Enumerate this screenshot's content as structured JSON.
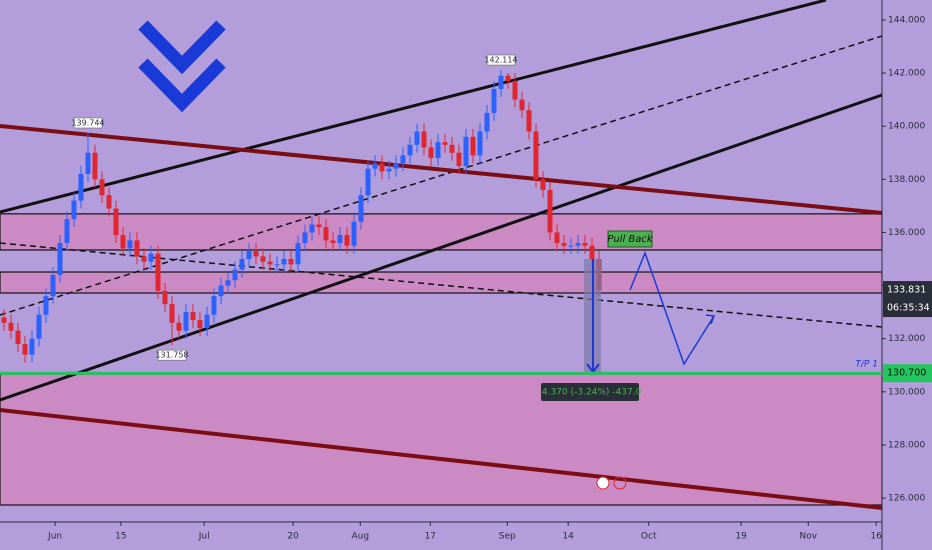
{
  "chart_data": {
    "type": "candlestick",
    "ylim": [
      125.1,
      144.75
    ],
    "yticks": [
      {
        "value": 126,
        "label": "126.000"
      },
      {
        "value": 128,
        "label": "128.000"
      },
      {
        "value": 130,
        "label": "130.000"
      },
      {
        "value": 132,
        "label": "132.000"
      },
      {
        "value": 134,
        "label": "134.000"
      },
      {
        "value": 136,
        "label": "136.000"
      },
      {
        "value": 138,
        "label": "138.000"
      },
      {
        "value": 140,
        "label": "140.000"
      },
      {
        "value": 142,
        "label": "142.000"
      },
      {
        "value": 144,
        "label": "144.000"
      }
    ],
    "xlim": [
      -0.57,
      125.43
    ],
    "xticks": [
      {
        "value": 7.3,
        "label": "Jun"
      },
      {
        "value": 16.7,
        "label": "15"
      },
      {
        "value": 28.6,
        "label": "Jul"
      },
      {
        "value": 41.3,
        "label": "20"
      },
      {
        "value": 50.9,
        "label": "Aug"
      },
      {
        "value": 60.9,
        "label": "17"
      },
      {
        "value": 71.9,
        "label": "Sep"
      },
      {
        "value": 80.6,
        "label": "14"
      },
      {
        "value": 92.1,
        "label": "Oct"
      },
      {
        "value": 105.3,
        "label": "19"
      },
      {
        "value": 114.9,
        "label": "Nov"
      },
      {
        "value": 124.6,
        "label": "16"
      }
    ],
    "up_color": "#2962ff",
    "down_color": "#e0262f",
    "ohlc": [
      [
        132.8,
        133.1,
        132.3,
        132.6
      ],
      [
        132.6,
        132.9,
        132.0,
        132.3
      ],
      [
        132.3,
        132.6,
        131.5,
        131.8
      ],
      [
        131.8,
        132.1,
        131.1,
        131.4
      ],
      [
        131.4,
        132.3,
        131.1,
        132.0
      ],
      [
        132.0,
        133.2,
        131.7,
        132.9
      ],
      [
        132.9,
        133.9,
        132.6,
        133.6
      ],
      [
        133.6,
        134.7,
        133.3,
        134.4
      ],
      [
        134.4,
        135.9,
        134.1,
        135.6
      ],
      [
        135.6,
        136.8,
        135.3,
        136.5
      ],
      [
        136.5,
        137.5,
        136.2,
        137.2
      ],
      [
        137.2,
        138.5,
        136.9,
        138.2
      ],
      [
        138.2,
        139.744,
        137.9,
        139.0
      ],
      [
        139.0,
        139.3,
        137.7,
        138.0
      ],
      [
        138.0,
        138.3,
        137.1,
        137.4
      ],
      [
        137.4,
        137.7,
        136.6,
        136.9
      ],
      [
        136.9,
        137.2,
        135.6,
        135.9
      ],
      [
        135.9,
        136.2,
        135.1,
        135.4
      ],
      [
        135.4,
        136.0,
        135.1,
        135.7
      ],
      [
        135.7,
        136.0,
        134.8,
        135.1
      ],
      [
        135.1,
        135.4,
        134.6,
        134.9
      ],
      [
        134.9,
        135.5,
        134.6,
        135.2
      ],
      [
        135.2,
        135.5,
        133.5,
        133.8
      ],
      [
        133.8,
        134.1,
        133.0,
        133.3
      ],
      [
        133.3,
        133.6,
        131.758,
        132.6
      ],
      [
        132.6,
        132.9,
        132.0,
        132.3
      ],
      [
        132.3,
        133.3,
        132.0,
        133.0
      ],
      [
        133.0,
        133.3,
        132.4,
        132.7
      ],
      [
        132.7,
        133.0,
        132.1,
        132.4
      ],
      [
        132.4,
        133.2,
        132.1,
        132.9
      ],
      [
        132.9,
        133.9,
        132.6,
        133.6
      ],
      [
        133.6,
        134.3,
        133.3,
        134.0
      ],
      [
        134.0,
        134.5,
        133.7,
        134.2
      ],
      [
        134.2,
        134.9,
        133.9,
        134.6
      ],
      [
        134.6,
        135.3,
        134.3,
        135.0
      ],
      [
        135.0,
        135.6,
        134.7,
        135.3
      ],
      [
        135.3,
        135.6,
        134.8,
        135.1
      ],
      [
        135.1,
        135.4,
        134.6,
        134.9
      ],
      [
        134.9,
        135.2,
        134.5,
        134.8
      ],
      [
        134.8,
        135.1,
        134.5,
        134.8
      ],
      [
        134.8,
        135.3,
        134.5,
        135.0
      ],
      [
        135.0,
        135.3,
        134.5,
        134.8
      ],
      [
        134.8,
        135.9,
        134.5,
        135.6
      ],
      [
        135.6,
        136.3,
        135.3,
        136.0
      ],
      [
        136.0,
        136.6,
        135.7,
        136.3
      ],
      [
        136.3,
        136.6,
        135.9,
        136.2
      ],
      [
        136.2,
        136.5,
        135.4,
        135.7
      ],
      [
        135.7,
        136.0,
        135.3,
        135.6
      ],
      [
        135.6,
        136.2,
        135.3,
        135.9
      ],
      [
        135.9,
        136.2,
        135.2,
        135.5
      ],
      [
        135.5,
        136.7,
        135.2,
        136.4
      ],
      [
        136.4,
        137.7,
        136.1,
        137.4
      ],
      [
        137.4,
        138.7,
        137.1,
        138.4
      ],
      [
        138.4,
        138.9,
        138.1,
        138.6
      ],
      [
        138.6,
        138.9,
        138.0,
        138.3
      ],
      [
        138.3,
        138.7,
        138.0,
        138.4
      ],
      [
        138.4,
        138.9,
        138.1,
        138.6
      ],
      [
        138.6,
        139.2,
        138.3,
        138.9
      ],
      [
        138.9,
        139.6,
        138.6,
        139.3
      ],
      [
        139.3,
        140.1,
        139.0,
        139.8
      ],
      [
        139.8,
        140.1,
        138.9,
        139.2
      ],
      [
        139.2,
        139.5,
        138.5,
        138.8
      ],
      [
        138.8,
        139.7,
        138.5,
        139.4
      ],
      [
        139.4,
        139.7,
        139.0,
        139.3
      ],
      [
        139.3,
        139.6,
        138.7,
        139.0
      ],
      [
        139.0,
        139.3,
        138.2,
        138.5
      ],
      [
        138.5,
        139.9,
        138.2,
        139.6
      ],
      [
        139.6,
        139.9,
        138.6,
        138.9
      ],
      [
        138.9,
        140.1,
        138.6,
        139.8
      ],
      [
        139.8,
        140.8,
        139.5,
        140.5
      ],
      [
        140.5,
        141.7,
        140.2,
        141.4
      ],
      [
        141.4,
        142.114,
        141.1,
        141.9
      ],
      [
        141.9,
        142.0,
        141.4,
        141.7
      ],
      [
        141.7,
        142.0,
        140.7,
        141.0
      ],
      [
        141.0,
        141.3,
        140.3,
        140.6
      ],
      [
        140.6,
        140.9,
        139.5,
        139.8
      ],
      [
        139.8,
        140.1,
        137.7,
        138.0
      ],
      [
        138.0,
        138.3,
        137.3,
        137.6
      ],
      [
        137.6,
        137.9,
        135.7,
        136.0
      ],
      [
        136.0,
        136.3,
        135.3,
        135.6
      ],
      [
        135.6,
        135.9,
        135.2,
        135.5
      ],
      [
        135.5,
        135.8,
        135.2,
        135.5
      ],
      [
        135.5,
        135.9,
        135.2,
        135.6
      ],
      [
        135.6,
        135.9,
        135.2,
        135.5
      ],
      [
        135.5,
        135.8,
        134.7,
        135.0
      ],
      [
        135.0,
        135.3,
        133.6,
        133.831
      ]
    ],
    "zones": [
      [
        135.34,
        136.7
      ],
      [
        133.72,
        134.51
      ],
      [
        125.74,
        130.67
      ]
    ],
    "zone_color": "#cc8ac4",
    "countdown": "06:35:34",
    "target": {
      "value": 130.7,
      "label": "130.700"
    },
    "target_name": "T/P 1",
    "callout": "Pull Back",
    "measure": "-4.370 (-3.24%) -437.0"
  }
}
